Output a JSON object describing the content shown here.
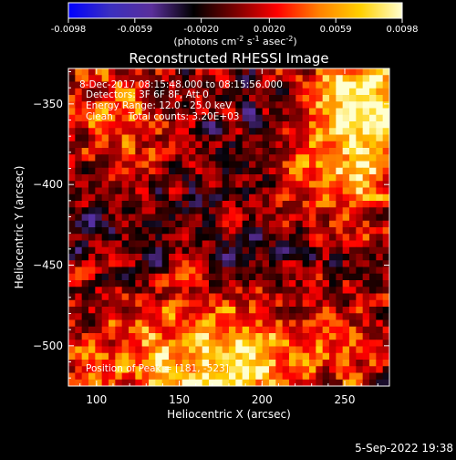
{
  "colorbar": {
    "ticks": [
      "-0.0098",
      "-0.0059",
      "-0.0020",
      "0.0020",
      "0.0059",
      "0.0098"
    ],
    "tick_values": [
      -0.0098,
      -0.0059,
      -0.002,
      0.002,
      0.0059,
      0.0098
    ],
    "range": [
      -0.0098,
      0.0098
    ],
    "units": {
      "part1": "(photons cm",
      "exp1": "-2",
      "part2": " s",
      "exp2": "-1",
      "part3": " asec",
      "exp3": "-2",
      "part4": ")"
    },
    "colors": [
      "#0000ff",
      "#3b2fbf",
      "#5a2f9a",
      "#000000",
      "#7a0000",
      "#ff0000",
      "#ff8000",
      "#ffd000",
      "#ffffd0"
    ]
  },
  "chart_data": {
    "type": "heatmap",
    "title": "Reconstructed RHESSI Image",
    "xlabel": "Heliocentric X (arcsec)",
    "ylabel": "Heliocentric Y (arcsec)",
    "xlim": [
      83,
      277
    ],
    "ylim": [
      -525,
      -328
    ],
    "x_ticks": [
      100,
      150,
      200,
      250
    ],
    "y_ticks": [
      -350,
      -400,
      -450,
      -500
    ],
    "x_tick_labels": [
      "100",
      "150",
      "200",
      "250"
    ],
    "y_tick_labels": [
      "−350",
      "−400",
      "−450",
      "−500"
    ],
    "grid_cells": [
      48,
      48
    ],
    "peak": {
      "x": 181,
      "y": -523
    },
    "annotations": {
      "line1": "8-Dec-2017 08:15:48.000 to 08:15:56.000",
      "line2": "Detectors: 3F 6F 8F, Att 0",
      "line3": "Energy Range: 12.0 - 25.0 keV",
      "line4": "Clean     Total counts: 3.20E+03",
      "peak_label": "Position of Peak = [181, -523]"
    },
    "hot_regions": [
      {
        "name": "upper-right",
        "x": 265,
        "y": -345,
        "amp": 1.0
      },
      {
        "name": "right-middle",
        "x": 255,
        "y": -395,
        "amp": 0.55
      },
      {
        "name": "left-upper",
        "x": 110,
        "y": -355,
        "amp": 0.45
      },
      {
        "name": "bottom-center",
        "x": 181,
        "y": -515,
        "amp": 1.0
      },
      {
        "name": "bottom-left",
        "x": 115,
        "y": -505,
        "amp": 0.5
      },
      {
        "name": "bottom-right",
        "x": 250,
        "y": -500,
        "amp": 0.35
      }
    ]
  },
  "footer": {
    "date": "5-Sep-2022 19:38"
  }
}
